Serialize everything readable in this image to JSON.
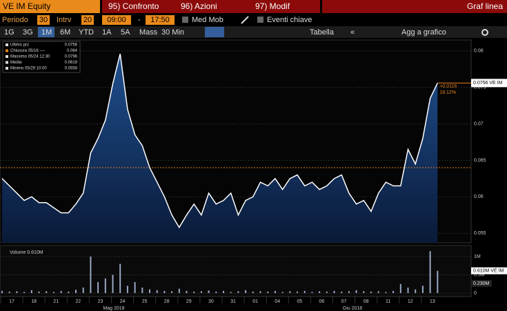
{
  "toolbar": {
    "ticker": "VE IM Equity",
    "menu": [
      "95) Confronto",
      "96) Azioni",
      "97) Modif"
    ],
    "view": "Graf linea",
    "period_label": "Periodo",
    "period": "30",
    "interval_label": "Intrv",
    "interval": "20",
    "start": "09:00",
    "dash": "-",
    "end": "17:50",
    "moving_avg": "Med Mob",
    "key_events": "Eventi chiave",
    "ranges": [
      "1G",
      "3G",
      "1M",
      "6M",
      "YTD",
      "1A",
      "5A",
      "Mass"
    ],
    "active_range": "1M",
    "bar_size": "30 Min",
    "table": "Tabella",
    "add": "Agg a grafico"
  },
  "legend": [
    {
      "name": "Ultimo prz",
      "value": "0.0756"
    },
    {
      "name": "Chiusura 05/16 ----",
      "value": "0.064"
    },
    {
      "name": "Massimo 05/24 12:30",
      "value": "0.0796"
    },
    {
      "name": "Media",
      "value": "0.0619"
    },
    {
      "name": "Minimo 05/29 10:00",
      "value": "0.0558"
    }
  ],
  "months": [
    "Mag 2018",
    "Giu 2018"
  ],
  "chart_data": [
    {
      "type": "line",
      "categories": [
        "17",
        null,
        null,
        "18",
        null,
        null,
        "21",
        null,
        null,
        "22",
        null,
        null,
        "23",
        null,
        null,
        "24",
        null,
        null,
        "25",
        null,
        null,
        "28",
        null,
        null,
        "29",
        null,
        null,
        "30",
        null,
        null,
        "31",
        null,
        null,
        "01",
        null,
        null,
        "04",
        null,
        null,
        "05",
        null,
        null,
        "06",
        null,
        null,
        "07",
        null,
        null,
        "08",
        null,
        null,
        "11",
        null,
        null,
        "12",
        null,
        null,
        "13",
        null,
        null
      ],
      "series": [
        {
          "name": "VE IM",
          "color": "#ffffff",
          "values": [
            0.0625,
            0.0615,
            0.0605,
            0.0595,
            0.06,
            0.0592,
            0.0592,
            0.0585,
            0.0578,
            0.0578,
            0.059,
            0.0605,
            0.066,
            0.068,
            0.0705,
            0.0755,
            0.0796,
            0.072,
            0.0685,
            0.067,
            0.064,
            0.062,
            0.06,
            0.0575,
            0.0558,
            0.0575,
            0.059,
            0.0575,
            0.0605,
            0.059,
            0.0595,
            0.0605,
            0.0575,
            0.0595,
            0.06,
            0.062,
            0.0615,
            0.0625,
            0.061,
            0.0625,
            0.063,
            0.0615,
            0.062,
            0.061,
            0.0615,
            0.0625,
            0.063,
            0.0605,
            0.059,
            0.0595,
            0.058,
            0.0605,
            0.062,
            0.0615,
            0.0615,
            0.0665,
            0.0645,
            0.068,
            0.0735,
            0.0756
          ]
        }
      ],
      "ylim": [
        0.0537,
        0.0815
      ],
      "yticks": [
        0.055,
        0.06,
        0.065,
        0.07,
        0.075,
        0.08
      ],
      "reference_line": 0.064,
      "reference_color": "#e8821e",
      "last_label": "0.0756 VE IM",
      "change": "+0.0116",
      "change_pct": "18.12%"
    },
    {
      "type": "bar",
      "title": "Volume 0.610M",
      "series": [
        {
          "color": "#9aa8c4",
          "values": [
            60000,
            40000,
            50000,
            30000,
            80000,
            40000,
            50000,
            30000,
            60000,
            40000,
            90000,
            150000,
            1000000,
            300000,
            400000,
            500000,
            800000,
            200000,
            300000,
            150000,
            100000,
            80000,
            60000,
            50000,
            120000,
            60000,
            40000,
            50000,
            70000,
            40000,
            60000,
            30000,
            50000,
            80000,
            40000,
            50000,
            40000,
            60000,
            30000,
            50000,
            40000,
            60000,
            30000,
            50000,
            40000,
            60000,
            40000,
            50000,
            80000,
            50000,
            40000,
            50000,
            30000,
            60000,
            250000,
            150000,
            100000,
            200000,
            1150000,
            610000
          ]
        }
      ],
      "ylim": [
        0,
        1190000
      ],
      "yticks": [
        0,
        {
          "value": 500000,
          "label": "0.5M"
        },
        {
          "value": 1000000,
          "label": "1M"
        }
      ],
      "last_label": "0.610M VE IM",
      "avg_label": "0.230M"
    }
  ]
}
